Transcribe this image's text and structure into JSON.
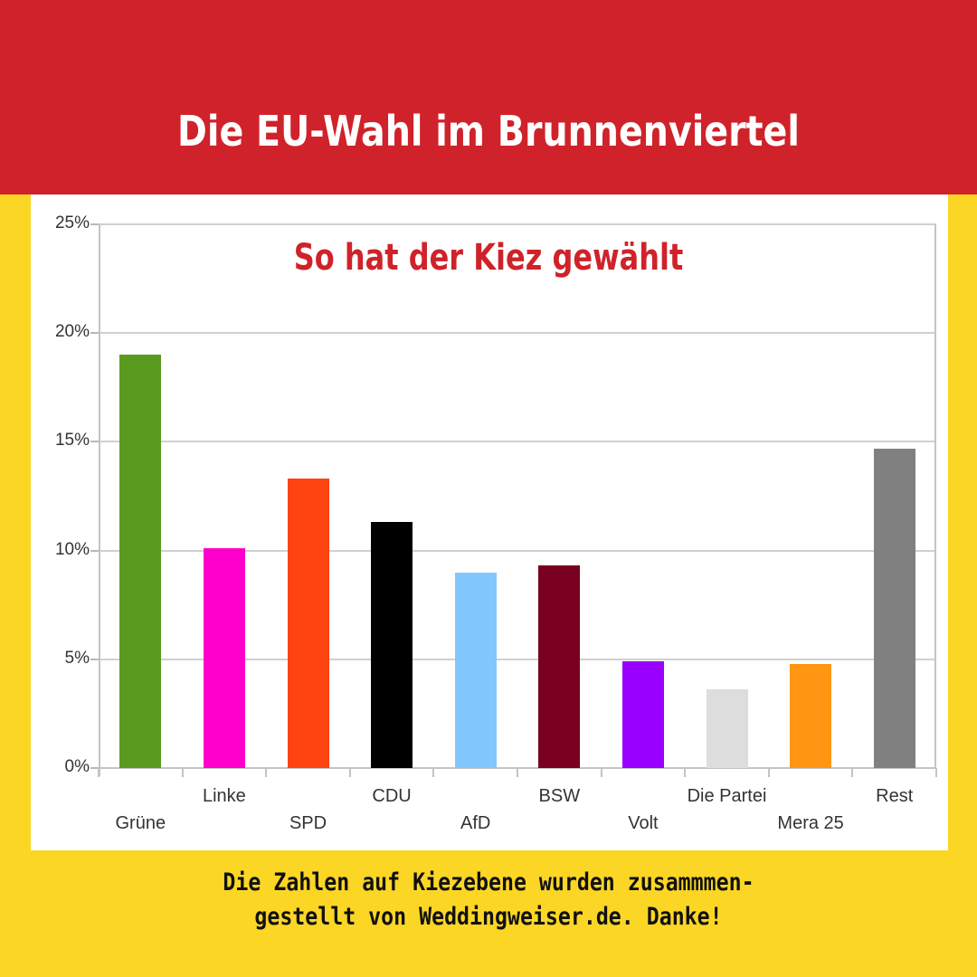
{
  "header": {
    "title": "Die EU-Wahl im Brunnenviertel",
    "background": "#d0222a"
  },
  "chart_subtitle": "So hat der Kiez gewählt",
  "footer": {
    "line1": "Die Zahlen auf Kiezebene wurden zusammmen-",
    "line2": "gestellt von Weddingweiser.de. Danke!"
  },
  "y_axis": {
    "ticks": [
      "0%",
      "5%",
      "10%",
      "15%",
      "20%",
      "25%"
    ]
  },
  "x_axis": {
    "labels": [
      "Grüne",
      "Linke",
      "SPD",
      "CDU",
      "AfD",
      "BSW",
      "Volt",
      "Die Partei",
      "Mera 25",
      "Rest"
    ]
  },
  "chart_data": {
    "type": "bar",
    "title": "Die EU-Wahl im Brunnenviertel",
    "subtitle": "So hat der Kiez gewählt",
    "categories": [
      "Grüne",
      "Linke",
      "SPD",
      "CDU",
      "AfD",
      "BSW",
      "Volt",
      "Die Partei",
      "Mera 25",
      "Rest"
    ],
    "values": [
      19.0,
      10.1,
      13.3,
      11.3,
      9.0,
      9.3,
      4.9,
      3.6,
      4.8,
      14.7
    ],
    "colors": [
      "#5a9b1f",
      "#ff00cc",
      "#ff4411",
      "#000000",
      "#82c8ff",
      "#7a0022",
      "#9900ff",
      "#dddddd",
      "#ff9511",
      "#808080"
    ],
    "xlabel": "",
    "ylabel": "",
    "ylim": [
      0,
      25
    ],
    "yticks": [
      "0%",
      "5%",
      "10%",
      "15%",
      "20%",
      "25%"
    ],
    "grid": true,
    "legend": "none"
  }
}
